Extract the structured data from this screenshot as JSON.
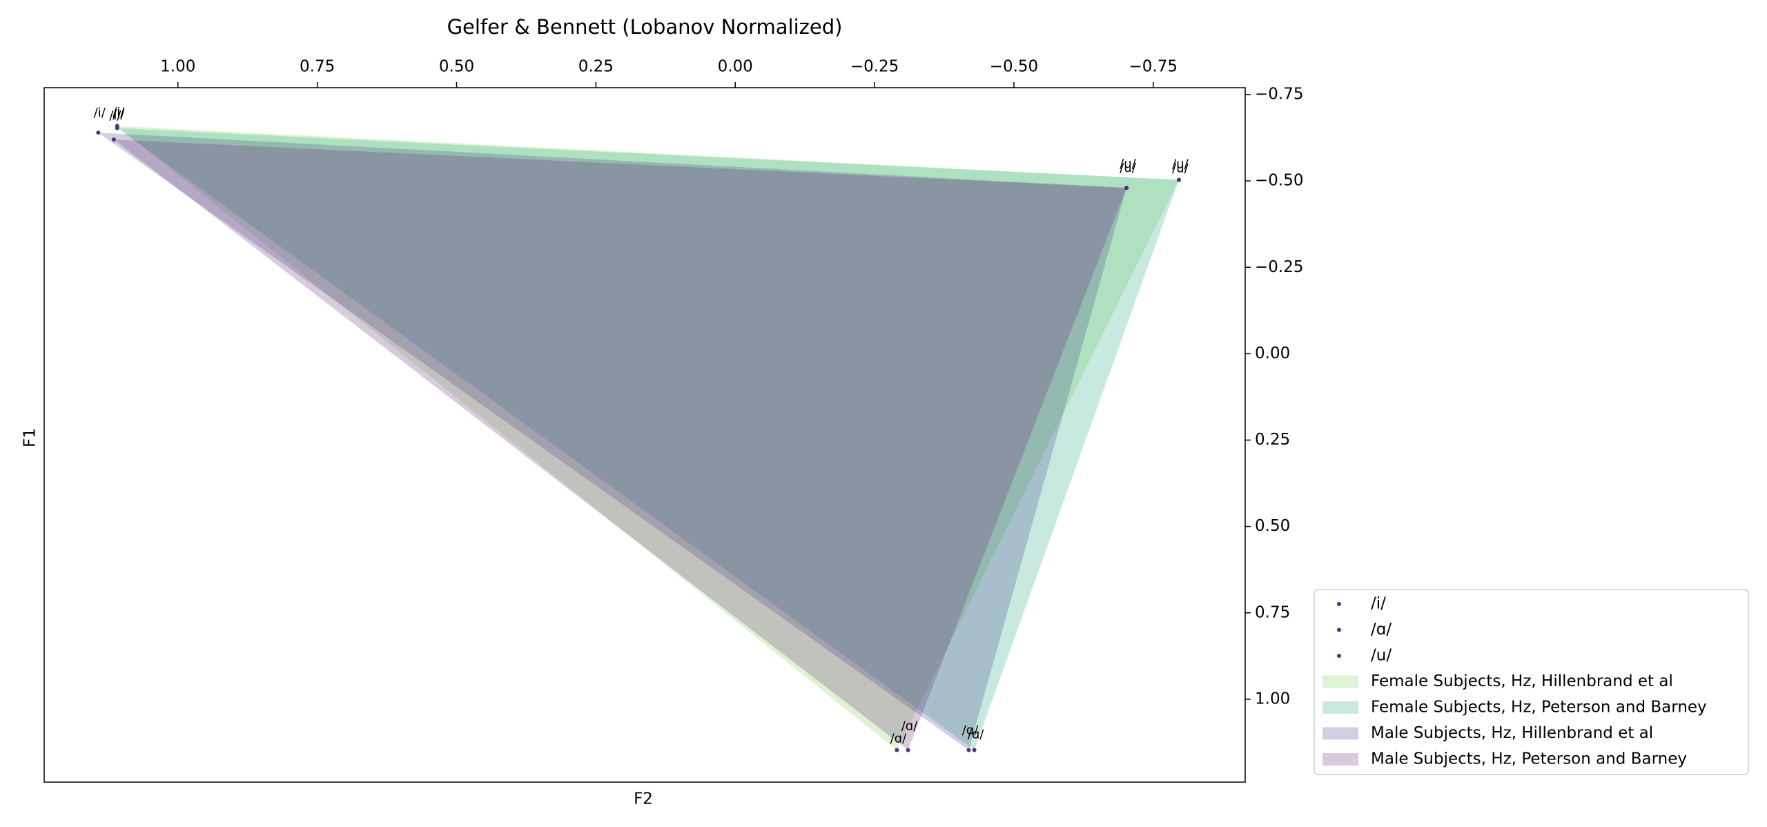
{
  "chart_data": {
    "type": "vowel-space",
    "title": "Gelfer & Bennett (Lobanov Normalized)",
    "x_label": "F2",
    "y_label": "F1",
    "vowels": [
      "/i/",
      "/ɑ/",
      "/u/"
    ],
    "vowel_color": "#5b2d82",
    "series": [
      {
        "name": "Female Subjects, Hz, Hillenbrand et al",
        "color": "#7ad151",
        "x": [
          1.109,
          -0.29,
          -0.796
        ],
        "y": [
          -0.659,
          1.147,
          -0.503
        ]
      },
      {
        "name": "Female Subjects, Hz, Peterson and Barney",
        "color": "#22a884",
        "x": [
          1.109,
          -0.429,
          -0.796
        ],
        "y": [
          -0.653,
          1.147,
          -0.503
        ]
      },
      {
        "name": "Male Subjects, Hz, Hillenbrand et al",
        "color": "#414487",
        "x": [
          1.143,
          -0.419,
          -0.702
        ],
        "y": [
          -0.64,
          1.147,
          -0.48
        ]
      },
      {
        "name": "Male Subjects, Hz, Peterson and Barney",
        "color": "#6a2a7a",
        "x": [
          1.115,
          -0.31,
          -0.702
        ],
        "y": [
          -0.62,
          1.147,
          -0.48
        ]
      }
    ],
    "xlim": [
      1.24,
      -0.915
    ],
    "xticks": [
      {
        "value": 1,
        "label": "1.00"
      },
      {
        "value": 0.75,
        "label": "0.75"
      },
      {
        "value": 0.5,
        "label": "0.50"
      },
      {
        "value": 0.25,
        "label": "0.25"
      },
      {
        "value": 0,
        "label": "0.00"
      },
      {
        "value": -0.25,
        "label": "−0.25"
      },
      {
        "value": -0.5,
        "label": "−0.50"
      },
      {
        "value": -0.75,
        "label": "−0.75"
      }
    ],
    "ylim": [
      1.24,
      -0.77
    ],
    "yticks": [
      {
        "value": -0.75,
        "label": "−0.75"
      },
      {
        "value": -0.5,
        "label": "−0.50"
      },
      {
        "value": -0.25,
        "label": "−0.25"
      },
      {
        "value": 0,
        "label": "0.00"
      },
      {
        "value": 0.25,
        "label": "0.25"
      },
      {
        "value": 0.5,
        "label": "0.50"
      },
      {
        "value": 0.75,
        "label": "0.75"
      },
      {
        "value": 1,
        "label": "1.00"
      }
    ],
    "fill_opacity": 0.25,
    "grid": false
  }
}
